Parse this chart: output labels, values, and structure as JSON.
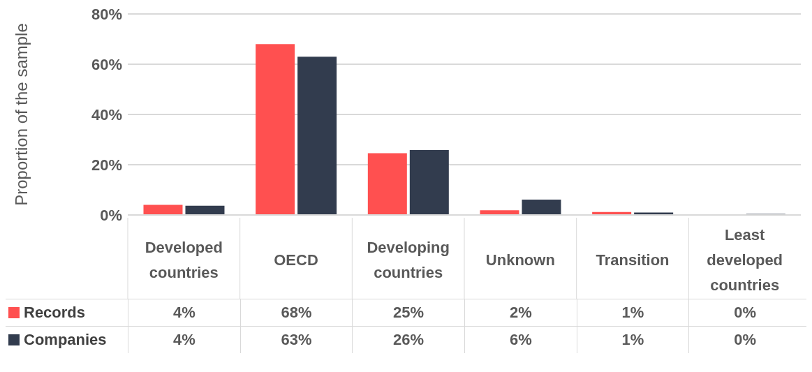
{
  "chart_data": {
    "type": "bar",
    "ylabel": "Proportion of the sample",
    "categories": [
      "Developed countries",
      "OECD",
      "Developing countries",
      "Unknown",
      "Transition",
      "Least developed countries"
    ],
    "series": [
      {
        "name": "Records",
        "color": "#ff5050",
        "values": [
          4,
          68,
          24.6,
          1.9,
          1.2,
          0.2
        ],
        "value_labels": [
          "4%",
          "68%",
          "25%",
          "2%",
          "1%",
          "0%"
        ]
      },
      {
        "name": "Companies",
        "color": "#323c4e",
        "values": [
          3.7,
          63,
          25.8,
          6.1,
          1,
          0.4
        ],
        "value_labels": [
          "4%",
          "63%",
          "26%",
          "6%",
          "1%",
          "0%"
        ]
      }
    ],
    "ylim": [
      0,
      80
    ],
    "yticks": [
      {
        "value": 0,
        "label": "0%"
      },
      {
        "value": 20,
        "label": "20%"
      },
      {
        "value": 40,
        "label": "40%"
      },
      {
        "value": 60,
        "label": "60%"
      },
      {
        "value": 80,
        "label": "80%"
      }
    ],
    "grid": "y",
    "legend": "bottom"
  }
}
